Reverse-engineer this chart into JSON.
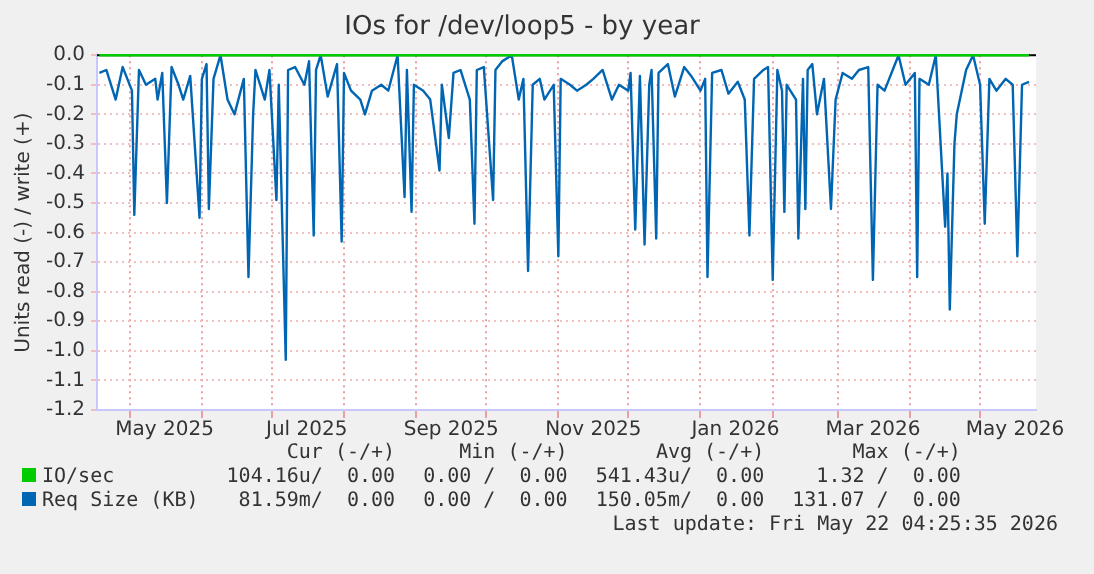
{
  "chart_data": {
    "type": "line",
    "title": "IOs for /dev/loop5 - by year",
    "ylabel": "Units read (-) / write (+)",
    "xlim": [
      "2025-04-17",
      "2026-05-25"
    ],
    "xticks": [
      {
        "value": "2025-05-01",
        "label": null
      },
      {
        "value": "2025-05-16",
        "label": "May 2025"
      },
      {
        "value": "2025-06-01",
        "label": null
      },
      {
        "value": "2025-07-01",
        "label": null
      },
      {
        "value": "2025-07-16",
        "label": "Jul 2025"
      },
      {
        "value": "2025-08-01",
        "label": null
      },
      {
        "value": "2025-09-01",
        "label": null
      },
      {
        "value": "2025-09-16",
        "label": "Sep 2025"
      },
      {
        "value": "2025-10-01",
        "label": null
      },
      {
        "value": "2025-11-01",
        "label": null
      },
      {
        "value": "2025-11-16",
        "label": "Nov 2025"
      },
      {
        "value": "2025-12-01",
        "label": null
      },
      {
        "value": "2026-01-01",
        "label": null
      },
      {
        "value": "2026-01-16",
        "label": "Jan 2026"
      },
      {
        "value": "2026-02-01",
        "label": null
      },
      {
        "value": "2026-03-01",
        "label": null
      },
      {
        "value": "2026-03-16",
        "label": "Mar 2026"
      },
      {
        "value": "2026-04-01",
        "label": null
      },
      {
        "value": "2026-05-01",
        "label": null
      },
      {
        "value": "2026-05-16",
        "label": "May 2026"
      }
    ],
    "ylim": [
      -1.2,
      0
    ],
    "yticks": [
      {
        "value": 0,
        "label": "0.0"
      },
      {
        "value": -0.1,
        "label": "-0.1"
      },
      {
        "value": -0.2,
        "label": "-0.2"
      },
      {
        "value": -0.3,
        "label": "-0.3"
      },
      {
        "value": -0.4,
        "label": "-0.4"
      },
      {
        "value": -0.5,
        "label": "-0.5"
      },
      {
        "value": -0.6,
        "label": "-0.6"
      },
      {
        "value": -0.7,
        "label": "-0.7"
      },
      {
        "value": -0.8,
        "label": "-0.8"
      },
      {
        "value": -0.9,
        "label": "-0.9"
      },
      {
        "value": -1,
        "label": "-1.0"
      },
      {
        "value": -1.1,
        "label": "-1.1"
      },
      {
        "value": -1.2,
        "label": "-1.2"
      }
    ],
    "grid": true,
    "legend": "bottom",
    "marker": "none",
    "line_style": "solid",
    "series": [
      {
        "name": "IO/sec",
        "color": "#00cc00",
        "x": [
          "2025-04-18",
          "2026-05-22"
        ],
        "values": [
          0,
          0
        ]
      },
      {
        "name": "Req Size (KB)",
        "color": "#0066b3",
        "x": [
          "2025-04-18",
          "2025-04-21",
          "2025-04-25",
          "2025-04-28",
          "2025-05-02",
          "2025-05-03",
          "2025-05-05",
          "2025-05-08",
          "2025-05-12",
          "2025-05-13",
          "2025-05-15",
          "2025-05-17",
          "2025-05-19",
          "2025-05-22",
          "2025-05-24",
          "2025-05-27",
          "2025-05-31",
          "2025-06-01",
          "2025-06-03",
          "2025-06-04",
          "2025-06-06",
          "2025-06-09",
          "2025-06-12",
          "2025-06-15",
          "2025-06-19",
          "2025-06-21",
          "2025-06-23",
          "2025-06-24",
          "2025-06-28",
          "2025-06-30",
          "2025-07-03",
          "2025-07-04",
          "2025-07-07",
          "2025-07-08",
          "2025-07-11",
          "2025-07-15",
          "2025-07-17",
          "2025-07-19",
          "2025-07-20",
          "2025-07-22",
          "2025-07-25",
          "2025-07-29",
          "2025-07-31",
          "2025-08-01",
          "2025-08-04",
          "2025-08-08",
          "2025-08-10",
          "2025-08-13",
          "2025-08-17",
          "2025-08-20",
          "2025-08-24",
          "2025-08-27",
          "2025-08-28",
          "2025-08-30",
          "2025-08-31",
          "2025-09-04",
          "2025-09-07",
          "2025-09-11",
          "2025-09-12",
          "2025-09-15",
          "2025-09-17",
          "2025-09-20",
          "2025-09-24",
          "2025-09-26",
          "2025-09-27",
          "2025-09-30",
          "2025-10-04",
          "2025-10-05",
          "2025-10-08",
          "2025-10-12",
          "2025-10-15",
          "2025-10-17",
          "2025-10-19",
          "2025-10-21",
          "2025-10-24",
          "2025-10-26",
          "2025-10-30",
          "2025-11-01",
          "2025-11-02",
          "2025-11-06",
          "2025-11-09",
          "2025-11-13",
          "2025-11-16",
          "2025-11-20",
          "2025-11-24",
          "2025-11-27",
          "2025-12-01",
          "2025-12-02",
          "2025-12-04",
          "2025-12-06",
          "2025-12-08",
          "2025-12-10",
          "2025-12-11",
          "2025-12-13",
          "2025-12-14",
          "2025-12-18",
          "2025-12-21",
          "2025-12-25",
          "2025-12-28",
          "2026-01-01",
          "2026-01-03",
          "2026-01-04",
          "2026-01-06",
          "2026-01-10",
          "2026-01-13",
          "2026-01-17",
          "2026-01-20",
          "2026-01-22",
          "2026-01-24",
          "2026-01-28",
          "2026-01-30",
          "2026-02-01",
          "2026-02-03",
          "2026-02-05",
          "2026-02-06",
          "2026-02-07",
          "2026-02-11",
          "2026-02-12",
          "2026-02-14",
          "2026-02-15",
          "2026-02-16",
          "2026-02-18",
          "2026-02-20",
          "2026-02-23",
          "2026-02-26",
          "2026-02-28",
          "2026-03-03",
          "2026-03-07",
          "2026-03-10",
          "2026-03-14",
          "2026-03-16",
          "2026-03-18",
          "2026-03-21",
          "2026-03-25",
          "2026-03-27",
          "2026-03-30",
          "2026-04-03",
          "2026-04-04",
          "2026-04-05",
          "2026-04-09",
          "2026-04-12",
          "2026-04-16",
          "2026-04-17",
          "2026-04-18",
          "2026-04-20",
          "2026-04-21",
          "2026-04-25",
          "2026-04-28",
          "2026-05-01",
          "2026-05-03",
          "2026-05-05",
          "2026-05-08",
          "2026-05-12",
          "2026-05-15",
          "2026-05-17",
          "2026-05-19",
          "2026-05-22"
        ],
        "values": [
          -0.06,
          -0.05,
          -0.15,
          -0.04,
          -0.12,
          -0.54,
          -0.05,
          -0.1,
          -0.08,
          -0.15,
          -0.06,
          -0.5,
          -0.04,
          -0.1,
          -0.15,
          -0.07,
          -0.55,
          -0.08,
          -0.03,
          -0.52,
          -0.08,
          0,
          -0.15,
          -0.2,
          -0.08,
          -0.75,
          -0.2,
          -0.05,
          -0.15,
          -0.05,
          -0.49,
          -0.1,
          -1.03,
          -0.05,
          -0.04,
          -0.1,
          -0.02,
          -0.61,
          -0.05,
          0,
          -0.14,
          -0.03,
          -0.63,
          -0.06,
          -0.12,
          -0.15,
          -0.2,
          -0.12,
          -0.1,
          -0.12,
          0,
          -0.48,
          -0.05,
          -0.53,
          -0.1,
          -0.12,
          -0.15,
          -0.39,
          -0.1,
          -0.28,
          -0.06,
          -0.05,
          -0.15,
          -0.57,
          -0.05,
          -0.04,
          -0.49,
          -0.05,
          -0.02,
          0,
          -0.15,
          -0.08,
          -0.73,
          -0.1,
          -0.08,
          -0.15,
          -0.1,
          -0.68,
          -0.08,
          -0.1,
          -0.12,
          -0.1,
          -0.08,
          -0.05,
          -0.15,
          -0.1,
          -0.12,
          -0.06,
          -0.59,
          -0.07,
          -0.64,
          -0.1,
          -0.05,
          -0.62,
          -0.06,
          -0.03,
          -0.14,
          -0.04,
          -0.07,
          -0.12,
          -0.08,
          -0.75,
          -0.06,
          -0.05,
          -0.13,
          -0.09,
          -0.15,
          -0.61,
          -0.08,
          -0.05,
          -0.04,
          -0.76,
          -0.05,
          -0.12,
          -0.53,
          -0.1,
          -0.15,
          -0.62,
          -0.08,
          -0.52,
          -0.05,
          -0.03,
          -0.2,
          -0.08,
          -0.52,
          -0.15,
          -0.06,
          -0.08,
          -0.05,
          -0.04,
          -0.76,
          -0.1,
          -0.12,
          -0.04,
          0,
          -0.1,
          -0.06,
          -0.75,
          -0.08,
          -0.1,
          0,
          -0.58,
          -0.4,
          -0.86,
          -0.3,
          -0.2,
          -0.05,
          0,
          -0.1,
          -0.57,
          -0.08,
          -0.12,
          -0.08,
          -0.1,
          -0.68,
          -0.1,
          -0.09
        ]
      }
    ],
    "annotations": [
      "Cur (-/+)",
      "Min (-/+)",
      "Avg (-/+)",
      "Max (-/+)",
      "104.16u/  0.00",
      "0.00 /  0.00",
      "541.43u/  0.00",
      "1.32 /  0.00",
      "81.59m/  0.00",
      "0.00 /  0.00",
      "150.05m/  0.00",
      "131.07 /  0.00",
      "Last update: Fri May 22 04:25:35 2026"
    ]
  }
}
